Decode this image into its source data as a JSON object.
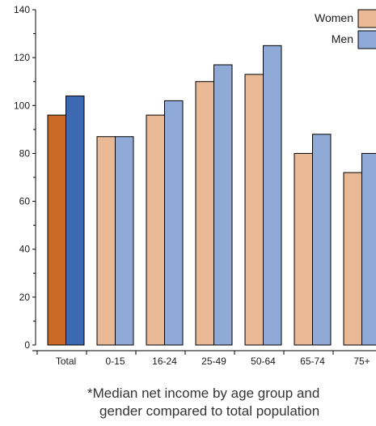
{
  "chart_data": {
    "type": "bar",
    "categories": [
      "Total",
      "0-15",
      "16-24",
      "25-49",
      "50-64",
      "65-74",
      "75+"
    ],
    "series": [
      {
        "name": "Women",
        "values": [
          96,
          87,
          96,
          110,
          113,
          80,
          72
        ],
        "color": "#e8b994",
        "total_color": "#c96a25"
      },
      {
        "name": "Men",
        "values": [
          104,
          87,
          102,
          117,
          125,
          88,
          80
        ],
        "color": "#8faad6",
        "total_color": "#3d68b2"
      }
    ],
    "ylim": [
      0,
      140
    ],
    "yticks": [
      0,
      20,
      40,
      60,
      80,
      100,
      120,
      140
    ],
    "title": "",
    "xlabel": "",
    "ylabel": "",
    "legend_position": "top-right",
    "grid": false
  },
  "footnote": {
    "line1": "*Median net income by age group and",
    "line2": "gender compared to total population"
  }
}
